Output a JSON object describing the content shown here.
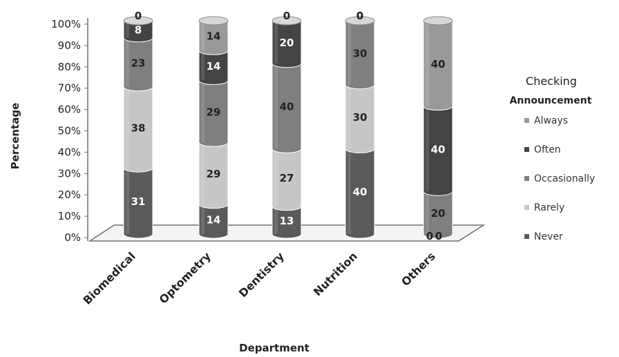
{
  "chart_data": {
    "type": "bar",
    "stacked": true,
    "percent": true,
    "style": "3d-cylinder",
    "xlabel": "Department",
    "ylabel": "Percentage",
    "ylim": [
      0,
      100
    ],
    "yticks": [
      "0%",
      "10%",
      "20%",
      "30%",
      "40%",
      "50%",
      "60%",
      "70%",
      "80%",
      "90%",
      "100%"
    ],
    "categories": [
      "Biomedical",
      "Optometry",
      "Dentistry",
      "Nutrition",
      "Others"
    ],
    "legend": {
      "title_line1": "Checking",
      "title_line2": "Announcement",
      "position": "right"
    },
    "series": [
      {
        "name": "Never",
        "values": [
          31,
          14,
          13,
          40,
          0
        ],
        "color": "#5a5a5a",
        "label_color": "#ffffff"
      },
      {
        "name": "Rarely",
        "values": [
          38,
          29,
          27,
          30,
          0
        ],
        "color": "#c6c6c6",
        "label_color": "#222222"
      },
      {
        "name": "Occasionally",
        "values": [
          23,
          29,
          40,
          30,
          20
        ],
        "color": "#7f7f7f",
        "label_color": "#222222"
      },
      {
        "name": "Often",
        "values": [
          8,
          14,
          20,
          0,
          40
        ],
        "color": "#444444",
        "label_color": "#ffffff"
      },
      {
        "name": "Always",
        "values": [
          0,
          14,
          0,
          0,
          40
        ],
        "color": "#999999",
        "label_color": "#222222"
      }
    ]
  }
}
